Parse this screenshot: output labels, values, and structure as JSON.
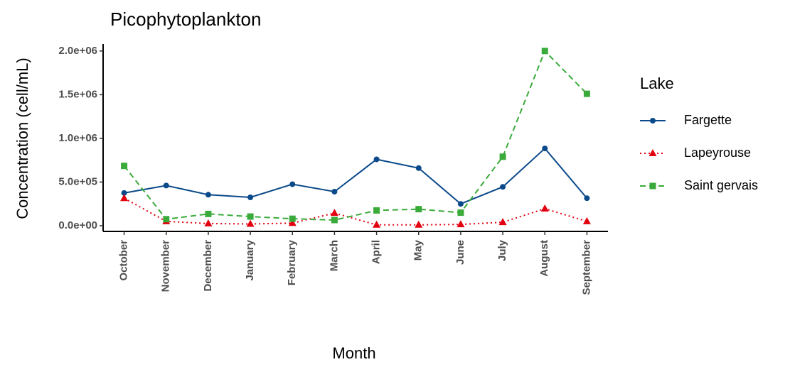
{
  "chart_data": {
    "type": "line",
    "title": "Picophytoplankton",
    "x_label": "Month",
    "y_label": "Concentration (cell/mL)",
    "categories": [
      "October",
      "November",
      "December",
      "January",
      "February",
      "March",
      "April",
      "May",
      "June",
      "July",
      "August",
      "September"
    ],
    "legend_title": "Lake",
    "legend": "right",
    "series": [
      {
        "name": "Fargette",
        "color": "#0b4a8a",
        "marker": "circle",
        "linestyle": "solid",
        "values": [
          375000,
          460000,
          355000,
          325000,
          475000,
          390000,
          760000,
          660000,
          250000,
          445000,
          885000,
          315000
        ]
      },
      {
        "name": "Lapeyrouse",
        "color": "#e3000f",
        "marker": "triangle",
        "linestyle": "dotted",
        "values": [
          315000,
          50000,
          25000,
          20000,
          30000,
          145000,
          10000,
          10000,
          15000,
          40000,
          195000,
          50000
        ]
      },
      {
        "name": "Saint gervais",
        "color": "#3aab3a",
        "marker": "square",
        "linestyle": "dashed",
        "values": [
          685000,
          75000,
          135000,
          105000,
          80000,
          65000,
          175000,
          190000,
          150000,
          790000,
          2000000,
          1510000
        ]
      }
    ],
    "ylim": [
      -65000,
      2080000
    ],
    "yticks": [
      {
        "value": 0,
        "label": "0.0e+00"
      },
      {
        "value": 500000,
        "label": "5.0e+05"
      },
      {
        "value": 1000000,
        "label": "1.0e+06"
      },
      {
        "value": 1500000,
        "label": "1.5e+06"
      },
      {
        "value": 2000000,
        "label": "2.0e+06"
      }
    ],
    "grid": false
  }
}
